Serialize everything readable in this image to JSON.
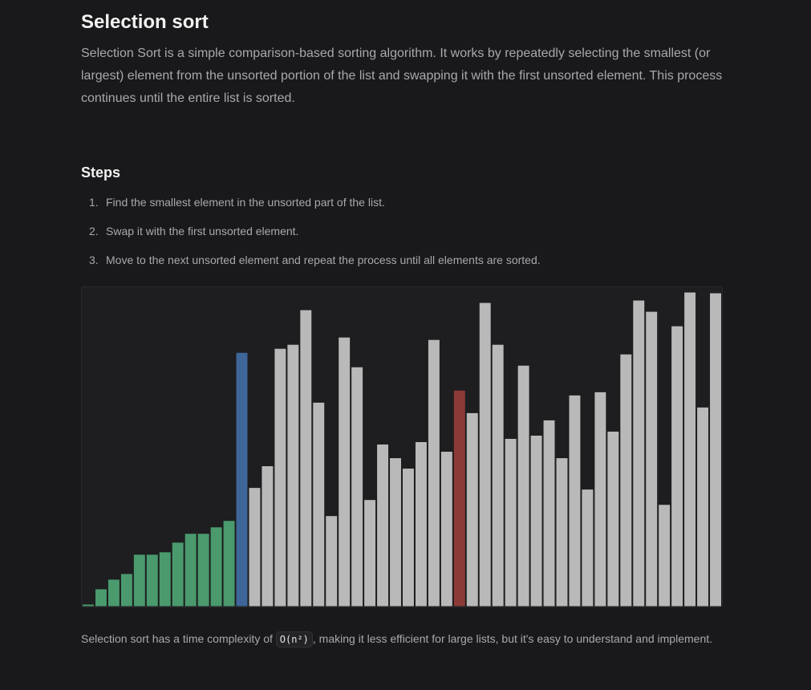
{
  "header": {
    "title": "Selection sort",
    "intro": "Selection Sort is a simple comparison-based sorting algorithm. It works by repeatedly selecting the smallest (or largest) element from the unsorted portion of the list and swapping it with the first unsorted element. This process continues until the entire list is sorted."
  },
  "steps": {
    "heading": "Steps",
    "items": [
      {
        "number": "1.",
        "text": "Find the smallest element in the unsorted part of the list."
      },
      {
        "number": "2.",
        "text": "Swap it with the first unsorted element."
      },
      {
        "number": "3.",
        "text": "Move to the next unsorted element and repeat the process until all elements are sorted."
      }
    ]
  },
  "chart_data": {
    "type": "bar",
    "values": [
      3,
      22,
      34,
      41,
      65,
      65,
      68,
      80,
      91,
      91,
      99,
      107,
      316,
      148,
      175,
      321,
      326,
      369,
      254,
      113,
      335,
      298,
      133,
      202,
      185,
      172,
      205,
      332,
      193,
      269,
      241,
      378,
      326,
      209,
      300,
      213,
      232,
      185,
      263,
      146,
      267,
      218,
      314,
      381,
      367,
      127,
      349,
      391,
      248,
      390
    ],
    "colors": [
      "#4a9a6e",
      "#4a9a6e",
      "#4a9a6e",
      "#4a9a6e",
      "#4a9a6e",
      "#4a9a6e",
      "#4a9a6e",
      "#4a9a6e",
      "#4a9a6e",
      "#4a9a6e",
      "#4a9a6e",
      "#4a9a6e",
      "#3f6698",
      "#b9b9b9",
      "#b9b9b9",
      "#b9b9b9",
      "#b9b9b9",
      "#b9b9b9",
      "#b9b9b9",
      "#b9b9b9",
      "#b9b9b9",
      "#b9b9b9",
      "#b9b9b9",
      "#b9b9b9",
      "#b9b9b9",
      "#b9b9b9",
      "#b9b9b9",
      "#b9b9b9",
      "#b9b9b9",
      "#8c3a38",
      "#b9b9b9",
      "#b9b9b9",
      "#b9b9b9",
      "#b9b9b9",
      "#b9b9b9",
      "#b9b9b9",
      "#b9b9b9",
      "#b9b9b9",
      "#b9b9b9",
      "#b9b9b9",
      "#b9b9b9",
      "#b9b9b9",
      "#b9b9b9",
      "#b9b9b9",
      "#b9b9b9",
      "#b9b9b9",
      "#b9b9b9",
      "#b9b9b9",
      "#b9b9b9",
      "#b9b9b9"
    ],
    "ylim": [
      0,
      397
    ]
  },
  "footer": {
    "before": "Selection sort has a time complexity of",
    "code": "O(n²)",
    "after": ", making it less efficient for large lists, but it's easy to understand and implement."
  }
}
